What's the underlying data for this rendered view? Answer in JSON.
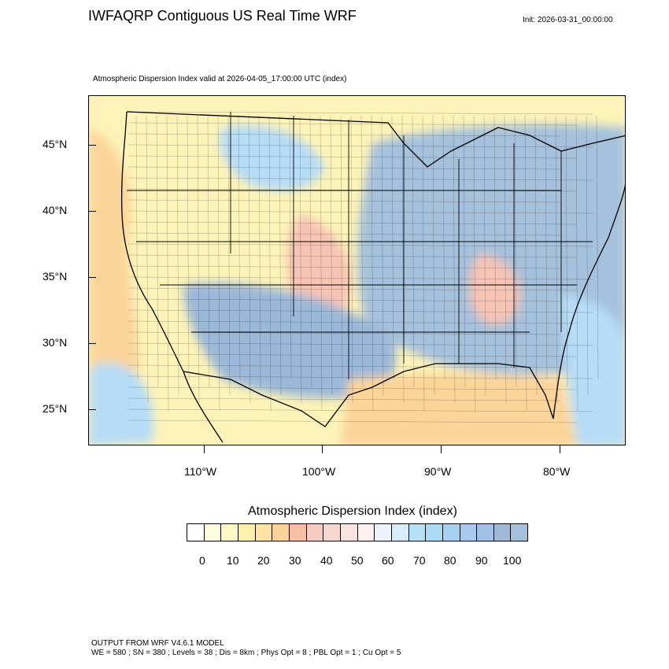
{
  "header": {
    "title": "IWFAQRP Contiguous US Real Time WRF",
    "init": "Init: 2026-03-31_00:00:00",
    "subtitle": "Atmospheric Dispersion Index valid at 2026-04-05_17:00:00 UTC   (index)"
  },
  "map": {
    "lat_labels": [
      "45°N",
      "40°N",
      "35°N",
      "30°N",
      "25°N"
    ],
    "lon_labels": [
      "110°W",
      "100°W",
      "90°W",
      "80°W"
    ],
    "colors": {
      "background_low": "#fdf3b8",
      "mid_orange": "#fbd49a",
      "mid_salmon": "#f6c3b4",
      "high_lightblue": "#b6dcf6",
      "high_steel": "#a6c1dc",
      "high_blue": "#9bb8d8",
      "ocean": "#a9c3dc",
      "boundary": "#000000"
    }
  },
  "legend": {
    "title": "Atmospheric Dispersion Index  (index)",
    "tick_labels": [
      "0",
      "10",
      "20",
      "30",
      "40",
      "50",
      "60",
      "70",
      "80",
      "90",
      "100"
    ],
    "colors": [
      "#ffffff",
      "#fefde0",
      "#fdf8c4",
      "#fdf0ad",
      "#fce3a4",
      "#fbd39a",
      "#f8bfa6",
      "#f6cbc0",
      "#f7d7d0",
      "#f9e4df",
      "#fdf2f0",
      "#eef3fb",
      "#d9ecfb",
      "#b3e2f8",
      "#a9daf4",
      "#a4d1f1",
      "#a9c9f0",
      "#a3c0e6",
      "#a1b9d7",
      "#a6c1dc"
    ]
  },
  "footer": {
    "line1": "OUTPUT FROM WRF V4.6.1 MODEL",
    "line2": "WE = 580 ; SN = 380 ; Levels = 38 ; Dis = 8km ; Phys Opt = 8 ; PBL Opt = 1 ; Cu Opt = 5"
  }
}
